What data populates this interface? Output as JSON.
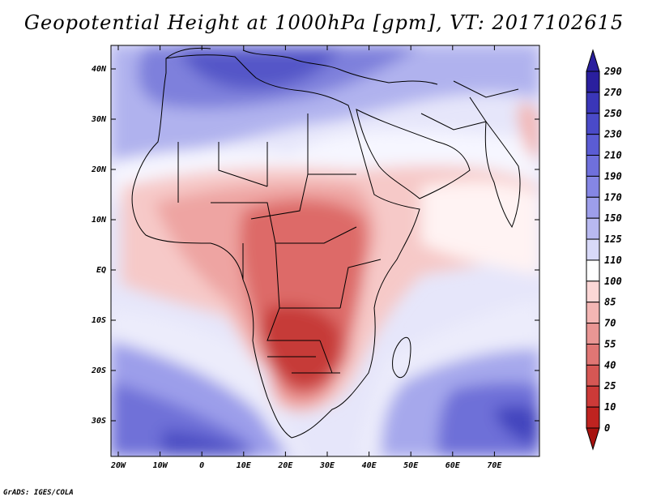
{
  "title": "Geopotential Height at 1000hPa [gpm], VT: 2017102615",
  "footer": "GrADS: IGES/COLA",
  "map": {
    "lat_labels": [
      "40N",
      "30N",
      "20N",
      "10N",
      "EQ",
      "10S",
      "20S",
      "30S"
    ],
    "lon_labels": [
      "20W",
      "10W",
      "0",
      "10E",
      "20E",
      "30E",
      "40E",
      "50E",
      "60E",
      "70E"
    ]
  },
  "colorbar": {
    "levels": [
      "290",
      "270",
      "250",
      "230",
      "210",
      "190",
      "170",
      "150",
      "125",
      "110",
      "100",
      "85",
      "70",
      "55",
      "40",
      "25",
      "10",
      "0"
    ],
    "colors": [
      "#2a1f9e",
      "#3a36b8",
      "#4a4ac8",
      "#5b5cd4",
      "#6f70dc",
      "#8586e4",
      "#9d9eea",
      "#b8b9f0",
      "#d8d9f8",
      "#ffffff",
      "#fbd7d6",
      "#f3b6b4",
      "#e99694",
      "#e07674",
      "#d65754",
      "#cc3a38",
      "#bf2320",
      "#a8120f"
    ]
  }
}
